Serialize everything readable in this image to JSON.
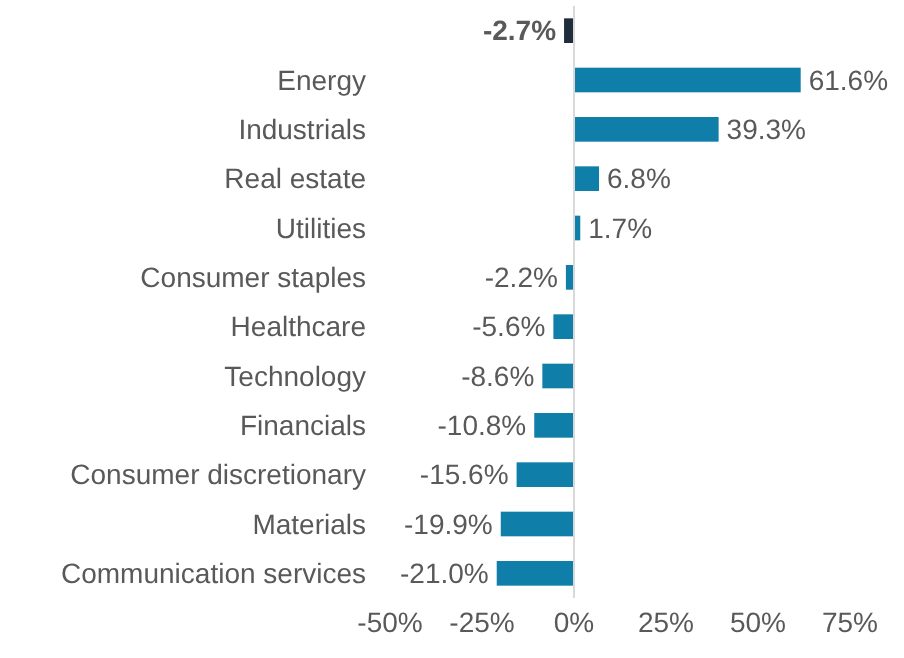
{
  "chart_data": {
    "type": "bar",
    "orientation": "horizontal",
    "categories": [
      null,
      "Energy",
      "Industrials",
      "Real estate",
      "Utilities",
      "Consumer staples",
      "Healthcare",
      "Technology",
      "Financials",
      "Consumer discretionary",
      "Materials",
      "Communication services"
    ],
    "values": [
      -2.7,
      61.6,
      39.3,
      6.8,
      1.7,
      -2.2,
      -5.6,
      -8.6,
      -10.8,
      -15.6,
      -19.9,
      -21.0
    ],
    "colors": [
      "#1f2d3d",
      "#0f7ea8",
      "#0f7ea8",
      "#0f7ea8",
      "#0f7ea8",
      "#0f7ea8",
      "#0f7ea8",
      "#0f7ea8",
      "#0f7ea8",
      "#0f7ea8",
      "#0f7ea8",
      "#0f7ea8"
    ],
    "value_labels": [
      "-2.7%",
      "61.6%",
      "39.3%",
      "6.8%",
      "1.7%",
      "-2.2%",
      "-5.6%",
      "-8.6%",
      "-10.8%",
      "-15.6%",
      "-19.9%",
      "-21.0%"
    ],
    "xlim": [
      -50,
      75
    ],
    "xticks": [
      {
        "value": -50,
        "label": "-50%"
      },
      {
        "value": -25,
        "label": "-25%"
      },
      {
        "value": 0,
        "label": "0%"
      },
      {
        "value": 25,
        "label": "25%"
      },
      {
        "value": 50,
        "label": "50%"
      },
      {
        "value": 75,
        "label": "75%"
      }
    ],
    "tick_labels": "x"
  }
}
